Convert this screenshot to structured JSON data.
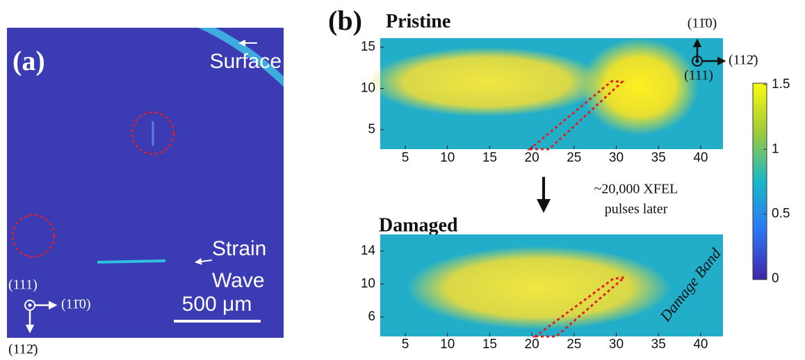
{
  "panel_a": {
    "label": "(a)",
    "surface": "Surface",
    "strain_wave": [
      "Strain",
      "Wave"
    ],
    "scale_bar": "500 μm",
    "directions": [
      "(111)",
      "(11̄0)",
      "(112̄)"
    ]
  },
  "panel_b": {
    "label": "(b)",
    "directions": [
      "(11̄0)",
      "(112̄)",
      "(111)"
    ],
    "transition": [
      "~20,000 XFEL",
      "pulses later"
    ],
    "top": {
      "title": "Pristine",
      "xticks": [
        5,
        10,
        15,
        20,
        25,
        30,
        35,
        40
      ],
      "yticks": [
        5,
        10,
        15
      ]
    },
    "bottom": {
      "title": "Damaged",
      "annotation": "Damage Band",
      "xticks": [
        5,
        10,
        15,
        20,
        25,
        30,
        35,
        40
      ],
      "yticks": [
        6,
        10,
        14
      ]
    },
    "colorbar": {
      "ticks": [
        0,
        0.5,
        1,
        1.5
      ]
    }
  }
}
